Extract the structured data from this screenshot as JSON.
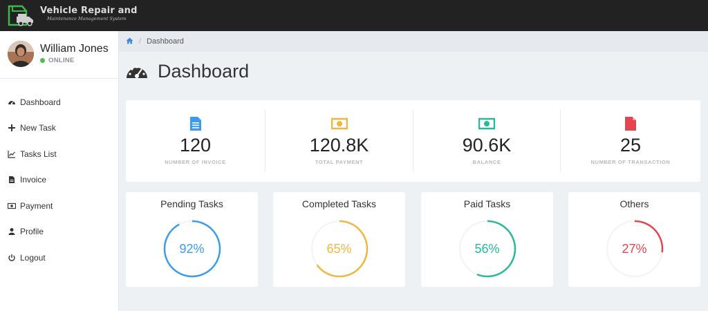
{
  "app": {
    "title": "Vehicle Repair and",
    "subtitle": "Maintenance Management System"
  },
  "user": {
    "name": "William Jones",
    "status": "ONLINE",
    "status_color": "#48c04d"
  },
  "sidebar": {
    "items": [
      {
        "label": "Dashboard",
        "icon": "dashboard-icon"
      },
      {
        "label": "New Task",
        "icon": "plus-icon"
      },
      {
        "label": "Tasks List",
        "icon": "line-chart-icon"
      },
      {
        "label": "Invoice",
        "icon": "file-icon"
      },
      {
        "label": "Payment",
        "icon": "money-icon"
      },
      {
        "label": "Profile",
        "icon": "user-icon"
      },
      {
        "label": "Logout",
        "icon": "power-icon"
      }
    ]
  },
  "breadcrumb": {
    "home_icon": "home-icon",
    "current": "Dashboard"
  },
  "page": {
    "title": "Dashboard"
  },
  "stats": [
    {
      "value": "120",
      "label": "NUMBER OF INVOICE",
      "icon": "document-icon",
      "color": "#3b9ced"
    },
    {
      "value": "120.8K",
      "label": "TOTAL PAYMENT",
      "icon": "money-icon",
      "color": "#f4b53f"
    },
    {
      "value": "90.6K",
      "label": "BALANCE",
      "icon": "money-icon",
      "color": "#26b99a"
    },
    {
      "value": "25",
      "label": "NUMBER OF TRANSACTION",
      "icon": "file-icon",
      "color": "#e8434f"
    }
  ],
  "progress": [
    {
      "title": "Pending Tasks",
      "percent": 92,
      "label": "92%",
      "color": "#3b9ced"
    },
    {
      "title": "Completed Tasks",
      "percent": 65,
      "label": "65%",
      "color": "#f4b53f"
    },
    {
      "title": "Paid Tasks",
      "percent": 56,
      "label": "56%",
      "color": "#26b99a"
    },
    {
      "title": "Others",
      "percent": 27,
      "label": "27%",
      "color": "#e8434f"
    }
  ]
}
